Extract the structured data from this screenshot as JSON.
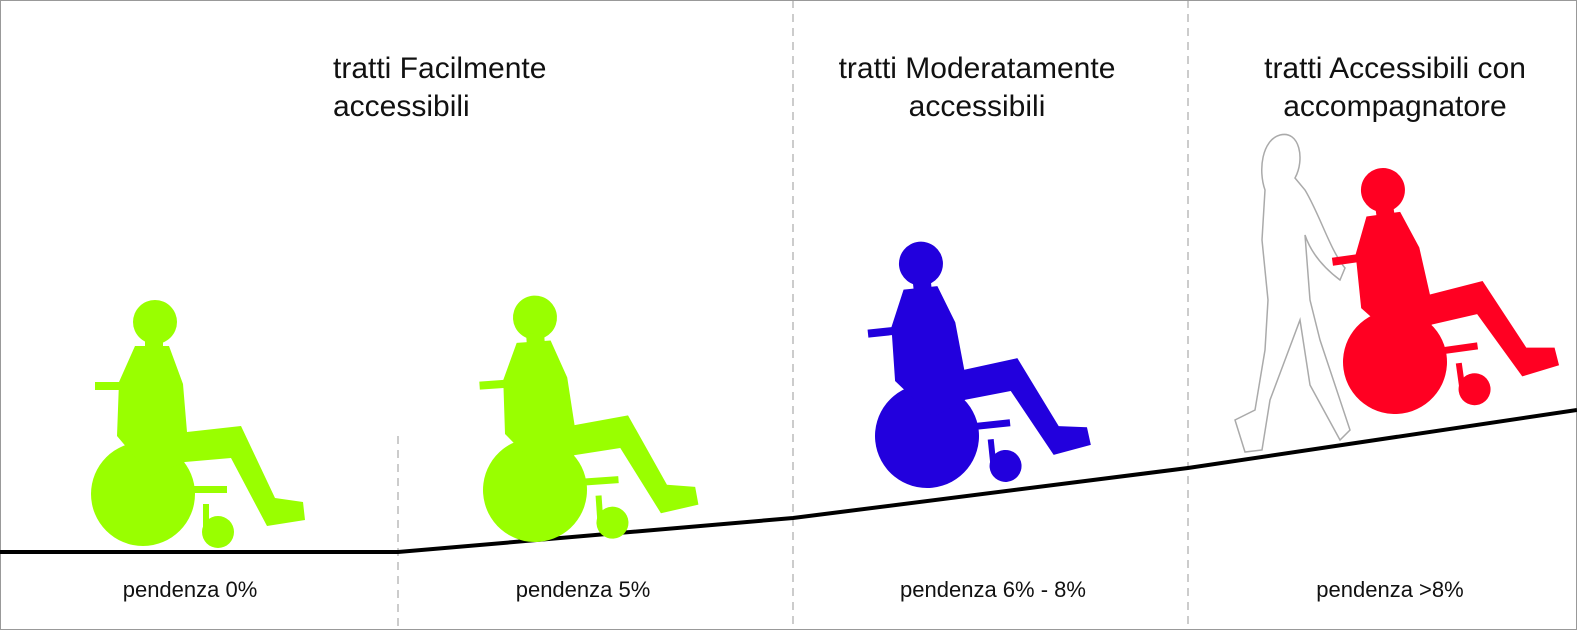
{
  "titles": [
    {
      "lines": [
        "tratti Facilmente",
        "accessibili"
      ]
    },
    {
      "lines": [
        "tratti Moderatamente",
        "accessibili"
      ]
    },
    {
      "lines": [
        "tratti Accessibili con",
        "accompagnatore"
      ]
    }
  ],
  "slopes": [
    "pendenza 0%",
    "pendenza 5%",
    "pendenza 6% - 8%",
    "pendenza >8%"
  ]
}
